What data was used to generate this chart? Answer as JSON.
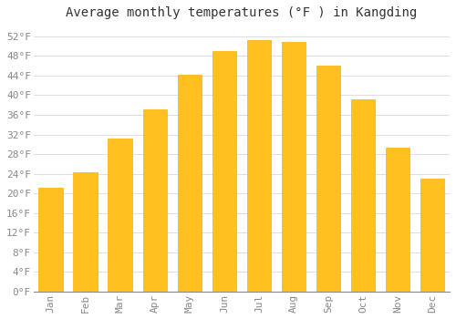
{
  "title": "Average monthly temperatures (°F ) in Kangding",
  "months": [
    "Jan",
    "Feb",
    "Mar",
    "Apr",
    "May",
    "Jun",
    "Jul",
    "Aug",
    "Sep",
    "Oct",
    "Nov",
    "Dec"
  ],
  "values": [
    21.2,
    24.3,
    31.1,
    37.2,
    44.2,
    49.0,
    51.3,
    50.9,
    46.0,
    39.2,
    29.3,
    23.0
  ],
  "bar_color": "#FFC020",
  "bar_edge_color": "#FFB000",
  "ylim": [
    0,
    54
  ],
  "ytick_start": 0,
  "ytick_end": 52,
  "ytick_step": 4,
  "background_color": "#ffffff",
  "plot_bg_color": "#ffffff",
  "grid_color": "#dddddd",
  "title_fontsize": 10,
  "tick_fontsize": 8,
  "font_family": "monospace",
  "tick_color": "#888888",
  "spine_color": "#888888"
}
